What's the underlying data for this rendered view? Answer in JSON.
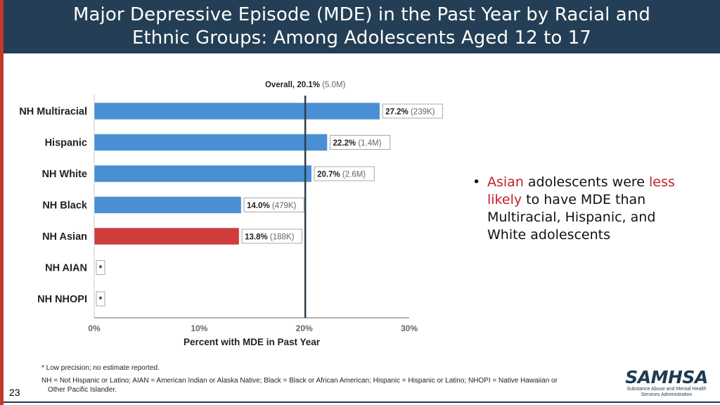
{
  "slide": {
    "title_line1": "Major Depressive Episode (MDE) in the Past Year by Racial and",
    "title_line2": "Ethnic Groups: Among Adolescents Aged 12 to 17",
    "page_number": "23"
  },
  "chart_data": {
    "type": "bar",
    "orientation": "horizontal",
    "categories": [
      "NH Multiracial",
      "Hispanic",
      "NH White",
      "NH Black",
      "NH Asian",
      "NH AIAN",
      "NH NHOPI"
    ],
    "values": [
      27.2,
      22.2,
      20.7,
      14.0,
      13.8,
      null,
      null
    ],
    "counts": [
      "(239K)",
      "(1.4M)",
      "(2.6M)",
      "(479K)",
      "(188K)",
      "",
      ""
    ],
    "value_labels": [
      "27.2%",
      "22.2%",
      "20.7%",
      "14.0%",
      "13.8%",
      "*",
      "*"
    ],
    "highlight_category": "NH Asian",
    "colors": {
      "default": "#4a8fd4",
      "highlight": "#d13c3c",
      "reference": "#2f3e4c"
    },
    "xlabel": "Percent with MDE in Past Year",
    "xlim": [
      0,
      30
    ],
    "xticks": [
      0,
      10,
      20,
      30
    ],
    "xtick_labels": [
      "0%",
      "10%",
      "20%",
      "30%"
    ],
    "reference_line": {
      "value": 20.1,
      "label_bold": "Overall, 20.1%",
      "label_count": "(5.0M)"
    }
  },
  "bullet": {
    "part1": "Asian",
    "part2": " adolescents were ",
    "part3": "less likely",
    "part4": " to have MDE than Multiracial, Hispanic, and White adolescents"
  },
  "footnotes": {
    "line1": "* Low precision; no estimate reported.",
    "line2a": "NH = Not Hispanic or Latino; AIAN = American Indian or Alaska Native; Black = Black or African American; Hispanic = Hispanic or Latino; NHOPI = Native Hawaiian or",
    "line2b": "Other Pacific Islander."
  },
  "logo": {
    "name": "SAMHSA",
    "sub1": "Substance Abuse and Mental Health",
    "sub2": "Services Administration"
  }
}
